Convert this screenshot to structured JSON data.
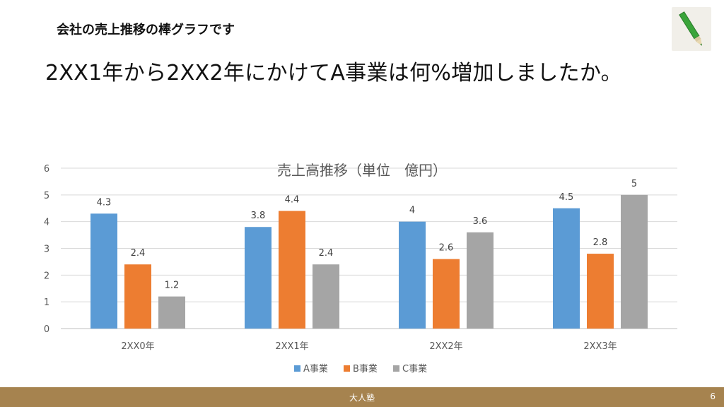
{
  "slide": {
    "header": "会社の売上推移の棒グラフです",
    "question": "2XX1年から2XX2年にかけてA事業は何%増加しましたか。"
  },
  "footer": {
    "org": "大人塾",
    "page": "6",
    "color": "#a6834f"
  },
  "chart_data": {
    "type": "bar",
    "title": "売上高推移（単位　億円）",
    "categories": [
      "2XX0年",
      "2XX1年",
      "2XX2年",
      "2XX3年"
    ],
    "series": [
      {
        "name": "A事業",
        "color": "#5b9bd5",
        "values": [
          4.3,
          3.8,
          4,
          4.5
        ],
        "labels": [
          "4.3",
          "3.8",
          "4",
          "4.5"
        ]
      },
      {
        "name": "B事業",
        "color": "#ed7d31",
        "values": [
          2.4,
          4.4,
          2.6,
          2.8
        ],
        "labels": [
          "2.4",
          "4.4",
          "2.6",
          "2.8"
        ]
      },
      {
        "name": "C事業",
        "color": "#a5a5a5",
        "values": [
          1.2,
          2.4,
          3.6,
          5
        ],
        "labels": [
          "1.2",
          "2.4",
          "3.6",
          "5"
        ]
      }
    ],
    "ylim": [
      0,
      6
    ],
    "yticks": [
      "0",
      "1",
      "2",
      "3",
      "4",
      "5",
      "6"
    ],
    "grid": true,
    "legend": "bottom"
  }
}
